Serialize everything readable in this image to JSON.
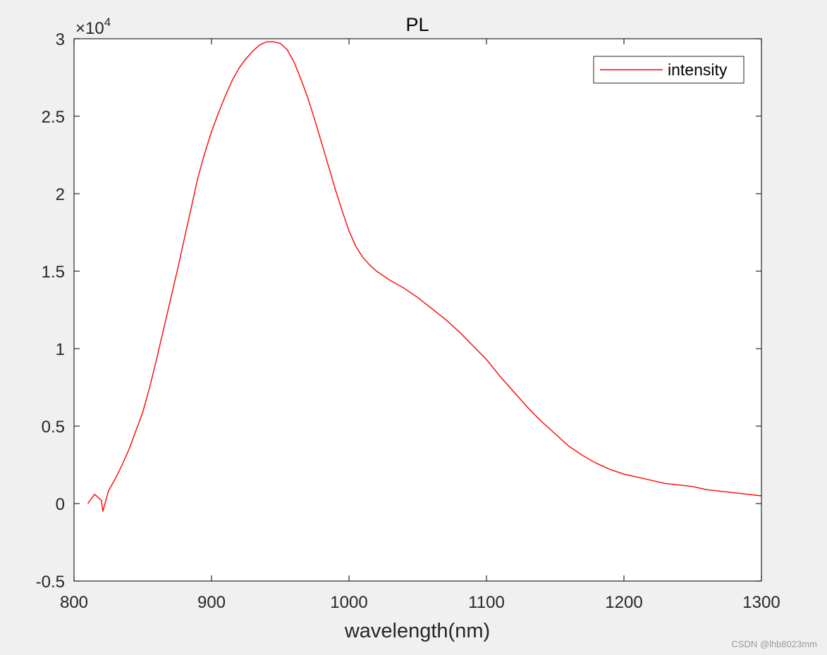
{
  "chart_data": {
    "type": "line",
    "title": "PL",
    "xlabel": "wavelength(nm)",
    "ylabel": "",
    "xlim": [
      800,
      1300
    ],
    "ylim": [
      -5000,
      30000
    ],
    "x_ticks": [
      800,
      900,
      1000,
      1100,
      1200,
      1300
    ],
    "x_tick_labels": [
      "800",
      "900",
      "1000",
      "1100",
      "1200",
      "1300"
    ],
    "y_ticks": [
      -5000,
      0,
      5000,
      10000,
      15000,
      20000,
      25000,
      30000
    ],
    "y_tick_labels": [
      "-0.5",
      "0",
      "0.5",
      "1",
      "1.5",
      "2",
      "2.5",
      "3"
    ],
    "y_exponent_prefix": "×10",
    "y_exponent": "4",
    "grid": false,
    "legend_position": "top-right",
    "series": [
      {
        "name": "intensity",
        "color": "#ff0000",
        "x": [
          810,
          815,
          820,
          821,
          825,
          830,
          835,
          840,
          845,
          850,
          855,
          860,
          865,
          870,
          875,
          880,
          885,
          890,
          895,
          900,
          905,
          910,
          915,
          920,
          925,
          930,
          935,
          940,
          945,
          950,
          955,
          960,
          965,
          970,
          975,
          980,
          985,
          990,
          995,
          1000,
          1005,
          1010,
          1015,
          1020,
          1025,
          1030,
          1040,
          1050,
          1060,
          1070,
          1080,
          1090,
          1100,
          1110,
          1120,
          1130,
          1140,
          1150,
          1160,
          1170,
          1180,
          1190,
          1200,
          1210,
          1220,
          1230,
          1240,
          1250,
          1260,
          1270,
          1280,
          1290,
          1300
        ],
        "y": [
          0,
          600,
          200,
          -500,
          800,
          1600,
          2500,
          3500,
          4700,
          5900,
          7500,
          9300,
          11200,
          13100,
          15000,
          17000,
          19000,
          21000,
          22600,
          24000,
          25200,
          26300,
          27300,
          28100,
          28700,
          29200,
          29600,
          29800,
          29800,
          29700,
          29300,
          28500,
          27400,
          26200,
          24800,
          23300,
          21800,
          20300,
          18900,
          17600,
          16600,
          15900,
          15400,
          15000,
          14700,
          14400,
          13900,
          13300,
          12600,
          11900,
          11100,
          10200,
          9300,
          8200,
          7200,
          6200,
          5300,
          4500,
          3700,
          3100,
          2600,
          2200,
          1900,
          1700,
          1500,
          1300,
          1200,
          1100,
          900,
          800,
          700,
          600,
          500
        ]
      }
    ]
  },
  "watermark": "CSDN @lhb8023mm"
}
